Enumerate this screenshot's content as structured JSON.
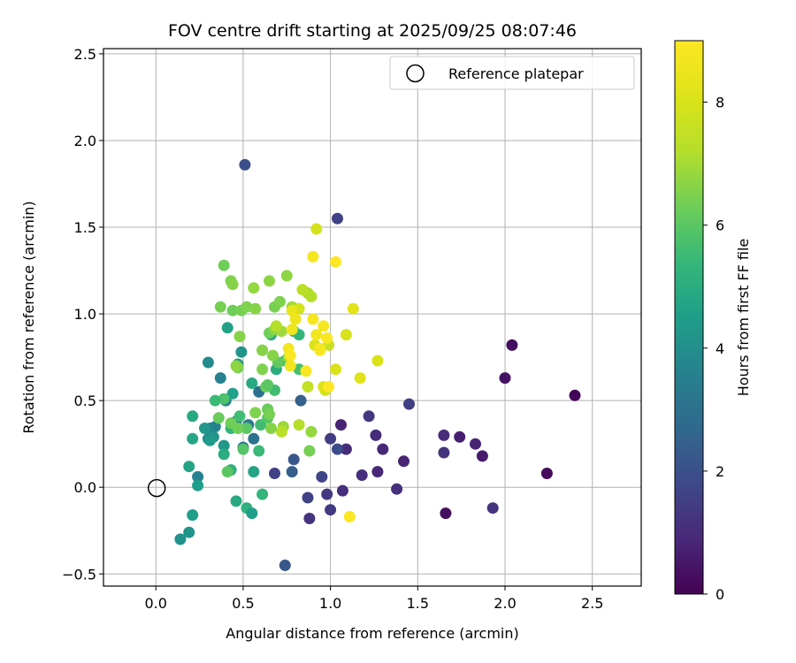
{
  "chart_data": {
    "type": "scatter",
    "title": "FOV centre drift starting at 2025/09/25 08:07:46",
    "xlabel": "Angular distance from reference (arcmin)",
    "ylabel": "Rotation from reference (arcmin)",
    "colorbar_label": "Hours from first FF file",
    "xlim": [
      -0.3,
      2.78
    ],
    "ylim": [
      -0.57,
      2.53
    ],
    "clim": [
      0,
      9
    ],
    "x_ticks": [
      0.0,
      0.5,
      1.0,
      1.5,
      2.0,
      2.5
    ],
    "x_tick_labels": [
      "0.0",
      "0.5",
      "1.0",
      "1.5",
      "2.0",
      "2.5"
    ],
    "y_ticks": [
      -0.5,
      0.0,
      0.5,
      1.0,
      1.5,
      2.0,
      2.5
    ],
    "y_tick_labels": [
      "−0.5",
      "0.0",
      "0.5",
      "1.0",
      "1.5",
      "2.0",
      "2.5"
    ],
    "colorbar_ticks": [
      0,
      2,
      4,
      6,
      8
    ],
    "colorbar_tick_labels": [
      "0",
      "2",
      "4",
      "6",
      "8"
    ],
    "grid": true,
    "legend": {
      "position": "top-right",
      "entries": [
        "Reference platepar"
      ]
    },
    "reference_point": {
      "x": 0.0,
      "y": 0.0,
      "label": "Reference platepar"
    },
    "points": [
      [
        2.4,
        0.53,
        0.1
      ],
      [
        2.24,
        0.08,
        0.2
      ],
      [
        2.04,
        0.82,
        0.3
      ],
      [
        2.0,
        0.63,
        0.4
      ],
      [
        1.66,
        -0.15,
        0.3
      ],
      [
        1.87,
        0.18,
        0.6
      ],
      [
        1.83,
        0.25,
        0.8
      ],
      [
        1.74,
        0.29,
        0.7
      ],
      [
        1.65,
        0.3,
        1.0
      ],
      [
        1.65,
        0.2,
        1.2
      ],
      [
        1.93,
        -0.12,
        1.2
      ],
      [
        1.45,
        0.48,
        1.5
      ],
      [
        1.42,
        0.15,
        0.8
      ],
      [
        1.38,
        -0.01,
        1.1
      ],
      [
        1.3,
        0.22,
        0.9
      ],
      [
        1.27,
        0.09,
        0.9
      ],
      [
        1.26,
        0.3,
        1.0
      ],
      [
        1.22,
        0.41,
        1.3
      ],
      [
        1.18,
        0.07,
        1.1
      ],
      [
        1.09,
        0.22,
        1.0
      ],
      [
        1.07,
        -0.02,
        1.1
      ],
      [
        1.06,
        0.36,
        0.8
      ],
      [
        1.04,
        1.55,
        1.6
      ],
      [
        1.04,
        0.22,
        1.9
      ],
      [
        1.0,
        0.28,
        1.5
      ],
      [
        1.0,
        -0.13,
        1.4
      ],
      [
        0.98,
        -0.04,
        1.3
      ],
      [
        0.95,
        0.06,
        1.7
      ],
      [
        0.88,
        -0.18,
        1.2
      ],
      [
        0.87,
        -0.06,
        1.6
      ],
      [
        0.83,
        0.5,
        2.5
      ],
      [
        0.79,
        0.16,
        2.2
      ],
      [
        0.78,
        0.09,
        2.4
      ],
      [
        0.68,
        0.08,
        1.6
      ],
      [
        0.74,
        -0.45,
        2.2
      ],
      [
        0.51,
        1.86,
        2.0
      ],
      [
        0.59,
        0.55,
        3.0
      ],
      [
        0.56,
        0.28,
        3.0
      ],
      [
        0.53,
        0.36,
        3.3
      ],
      [
        0.5,
        0.23,
        3.0
      ],
      [
        0.46,
        0.38,
        3.5
      ],
      [
        0.4,
        0.5,
        3.5
      ],
      [
        0.37,
        0.63,
        3.6
      ],
      [
        0.34,
        0.35,
        3.6
      ],
      [
        0.31,
        0.34,
        3.7
      ],
      [
        0.3,
        0.28,
        3.8
      ],
      [
        0.24,
        0.06,
        3.6
      ],
      [
        0.19,
        -0.26,
        4.2
      ],
      [
        0.14,
        -0.3,
        4.1
      ],
      [
        0.21,
        -0.16,
        4.5
      ],
      [
        0.3,
        0.72,
        3.9
      ],
      [
        0.33,
        0.29,
        4.1
      ],
      [
        0.31,
        0.27,
        4.4
      ],
      [
        0.28,
        0.34,
        4.3
      ],
      [
        0.24,
        0.01,
        4.5
      ],
      [
        0.19,
        0.12,
        4.7
      ],
      [
        0.21,
        0.28,
        4.8
      ],
      [
        0.21,
        0.41,
        4.9
      ],
      [
        0.39,
        0.24,
        4.3
      ],
      [
        0.39,
        0.19,
        5.0
      ],
      [
        0.44,
        0.54,
        4.6
      ],
      [
        0.47,
        0.71,
        4.3
      ],
      [
        0.41,
        0.92,
        4.6
      ],
      [
        0.49,
        0.78,
        4.2
      ],
      [
        0.55,
        0.6,
        4.9
      ],
      [
        0.56,
        0.09,
        4.7
      ],
      [
        0.61,
        -0.04,
        5.3
      ],
      [
        0.52,
        -0.12,
        5.2
      ],
      [
        0.46,
        -0.08,
        4.9
      ],
      [
        0.55,
        -0.15,
        4.5
      ],
      [
        0.66,
        0.88,
        4.8
      ],
      [
        0.69,
        0.68,
        5.0
      ],
      [
        0.79,
        0.9,
        5.2
      ],
      [
        0.74,
        0.73,
        5.5
      ],
      [
        0.82,
        0.68,
        5.7
      ],
      [
        0.82,
        0.88,
        5.3
      ],
      [
        0.6,
        0.36,
        5.6
      ],
      [
        0.64,
        0.4,
        5.9
      ],
      [
        0.59,
        0.21,
        5.5
      ],
      [
        0.5,
        0.22,
        5.9
      ],
      [
        0.48,
        0.41,
        5.6
      ],
      [
        0.43,
        0.34,
        5.3
      ],
      [
        0.43,
        0.1,
        5.1
      ],
      [
        0.41,
        0.09,
        6.0
      ],
      [
        0.39,
        0.51,
        5.8
      ],
      [
        0.34,
        0.5,
        5.5
      ],
      [
        0.36,
        0.4,
        6.2
      ],
      [
        0.52,
        0.34,
        6.0
      ],
      [
        0.47,
        0.34,
        6.3
      ],
      [
        0.43,
        0.37,
        6.3
      ],
      [
        0.64,
        0.45,
        6.2
      ],
      [
        0.65,
        0.42,
        6.4
      ],
      [
        0.68,
        0.56,
        5.6
      ],
      [
        0.7,
        0.72,
        6.1
      ],
      [
        0.63,
        0.58,
        6.3
      ],
      [
        0.64,
        0.59,
        6.0
      ],
      [
        0.61,
        0.79,
        6.1
      ],
      [
        0.47,
        0.69,
        6.4
      ],
      [
        0.46,
        0.7,
        6.7
      ],
      [
        0.44,
        1.02,
        6.3
      ],
      [
        0.37,
        1.04,
        6.4
      ],
      [
        0.43,
        1.19,
        6.5
      ],
      [
        0.44,
        1.17,
        6.6
      ],
      [
        0.39,
        1.28,
        6.3
      ],
      [
        0.48,
        0.87,
        6.6
      ],
      [
        0.49,
        1.02,
        6.4
      ],
      [
        0.52,
        1.04,
        6.5
      ],
      [
        0.57,
        1.03,
        6.6
      ],
      [
        0.56,
        1.15,
        6.8
      ],
      [
        0.65,
        1.19,
        6.7
      ],
      [
        0.61,
        0.68,
        6.5
      ],
      [
        0.61,
        0.79,
        6.6
      ],
      [
        0.65,
        0.89,
        6.3
      ],
      [
        0.67,
        0.76,
        6.6
      ],
      [
        0.68,
        0.91,
        6.7
      ],
      [
        0.68,
        1.04,
        6.4
      ],
      [
        0.71,
        1.07,
        6.5
      ],
      [
        0.75,
        1.22,
        6.7
      ],
      [
        0.78,
        1.04,
        6.9
      ],
      [
        0.76,
        0.75,
        7.0
      ],
      [
        0.72,
        0.9,
        6.9
      ],
      [
        0.69,
        0.93,
        7.2
      ],
      [
        0.73,
        0.35,
        6.9
      ],
      [
        0.72,
        0.32,
        7.3
      ],
      [
        0.66,
        0.34,
        6.6
      ],
      [
        0.57,
        0.43,
        6.5
      ],
      [
        0.88,
        0.21,
        6.4
      ],
      [
        0.89,
        0.32,
        6.8
      ],
      [
        0.82,
        0.36,
        7.2
      ],
      [
        0.87,
        1.12,
        7.1
      ],
      [
        0.89,
        1.1,
        7.2
      ],
      [
        0.84,
        1.14,
        7.3
      ],
      [
        0.87,
        0.58,
        7.5
      ],
      [
        0.97,
        0.56,
        7.8
      ],
      [
        0.96,
        0.58,
        8.1
      ],
      [
        0.99,
        0.82,
        7.6
      ],
      [
        1.03,
        0.68,
        8.0
      ],
      [
        1.09,
        0.88,
        8.0
      ],
      [
        1.13,
        1.03,
        8.2
      ],
      [
        1.17,
        0.63,
        8.2
      ],
      [
        1.27,
        0.73,
        8.0
      ],
      [
        0.92,
        1.49,
        7.9
      ],
      [
        0.91,
        0.82,
        8.0
      ],
      [
        0.82,
        1.03,
        7.9
      ],
      [
        0.78,
        1.02,
        8.4
      ],
      [
        0.8,
        0.97,
        8.6
      ],
      [
        0.78,
        0.91,
        8.6
      ],
      [
        0.76,
        0.8,
        8.8
      ],
      [
        0.77,
        0.76,
        8.9
      ],
      [
        0.77,
        0.7,
        8.7
      ],
      [
        0.86,
        0.67,
        8.9
      ],
      [
        0.9,
        0.97,
        8.8
      ],
      [
        0.92,
        0.88,
        8.7
      ],
      [
        0.94,
        0.79,
        9.0
      ],
      [
        0.94,
        0.8,
        8.8
      ],
      [
        0.96,
        0.93,
        8.8
      ],
      [
        0.98,
        0.86,
        8.9
      ],
      [
        0.99,
        0.58,
        9.0
      ],
      [
        0.9,
        1.33,
        8.8
      ],
      [
        1.03,
        1.3,
        9.0
      ],
      [
        1.11,
        -0.17,
        9.0
      ]
    ]
  }
}
